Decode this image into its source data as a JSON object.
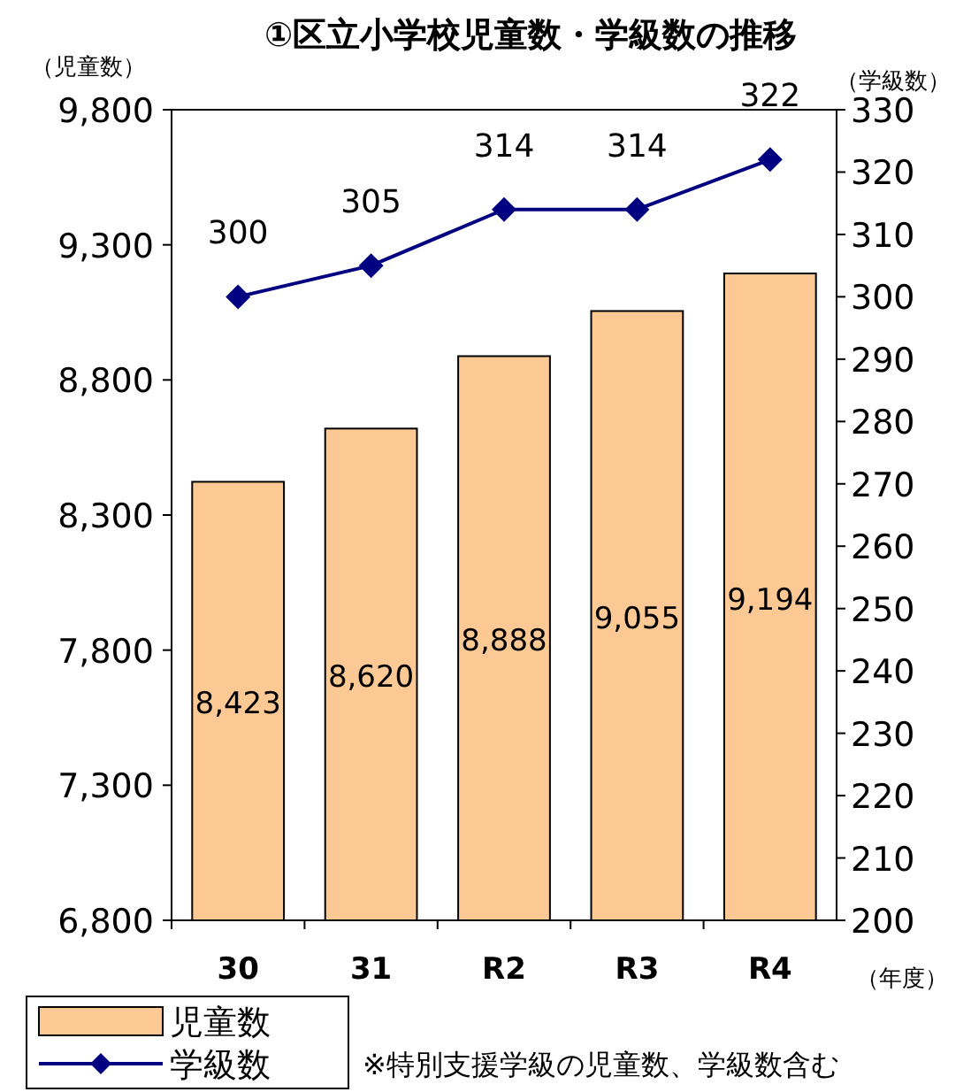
{
  "chart_data": {
    "type": "bar",
    "title": "①区立小学校児童数・学級数の推移",
    "ylabel": "（児童数）",
    "y2label": "（学級数）",
    "xlabel": "（年度）",
    "annotations": [
      "※特別支援学級の児童数、学級数含む"
    ],
    "categories": [
      "30",
      "31",
      "R2",
      "R3",
      "R4"
    ],
    "series": [
      {
        "name": "児童数",
        "color": "#fcc995",
        "values": [
          8423,
          8620,
          8888,
          9055,
          9194
        ],
        "value_labels": [
          "8,423",
          "8,620",
          "8,888",
          "9,055",
          "9,194"
        ]
      },
      {
        "name": "学級数",
        "type": "line",
        "axis": "y2",
        "color": "#000080",
        "marker": "diamond",
        "values": [
          300,
          305,
          314,
          314,
          322
        ]
      }
    ],
    "ylim": [
      6800,
      9800
    ],
    "yticks": [
      {
        "value": 6800,
        "label": "6,800"
      },
      {
        "value": 7300,
        "label": "7,300"
      },
      {
        "value": 7800,
        "label": "7,800"
      },
      {
        "value": 8300,
        "label": "8,300"
      },
      {
        "value": 8800,
        "label": "8,800"
      },
      {
        "value": 9300,
        "label": "9,300"
      },
      {
        "value": 9800,
        "label": "9,800"
      }
    ],
    "y2lim": [
      200,
      330
    ],
    "y2ticks": [
      200,
      210,
      220,
      230,
      240,
      250,
      260,
      270,
      280,
      290,
      300,
      310,
      320,
      330
    ],
    "data_labels": true,
    "grid": false,
    "legend": "bottom left"
  }
}
